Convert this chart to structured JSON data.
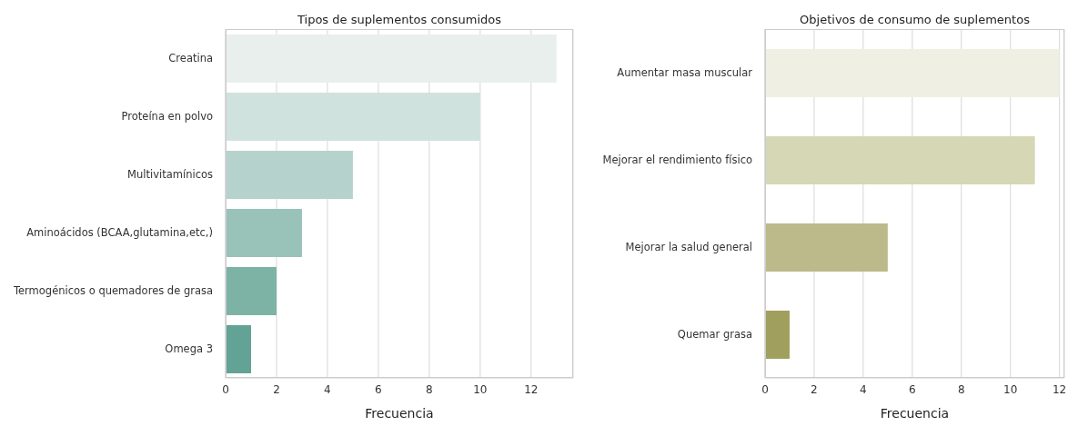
{
  "chart_data": [
    {
      "type": "bar",
      "orientation": "horizontal",
      "title": "Tipos de suplementos consumidos",
      "xlabel": "Frecuencia",
      "categories": [
        "Creatina",
        "Proteína en polvo",
        "Multivitamínicos",
        "Aminoácidos (BCAA,glutamina,etc,)",
        "Termogénicos o quemadores de grasa",
        "Omega 3"
      ],
      "values": [
        13,
        10,
        5,
        3,
        2,
        1
      ],
      "colors": [
        "#e9efed",
        "#d0e2de",
        "#b5d3cc",
        "#99c2b8",
        "#7db3a4",
        "#62a395"
      ],
      "xlim": [
        0,
        13.65
      ],
      "xticks": [
        0,
        2,
        4,
        6,
        8,
        10,
        12
      ],
      "grid": "x"
    },
    {
      "type": "bar",
      "orientation": "horizontal",
      "title": "Objetivos de consumo de suplementos",
      "xlabel": "Frecuencia",
      "categories": [
        "Aumentar masa muscular",
        "Mejorar el rendimiento físico",
        "Mejorar la salud general",
        "Quemar grasa"
      ],
      "values": [
        12,
        11,
        5,
        1
      ],
      "colors": [
        "#f0efe3",
        "#d6d7b5",
        "#bcb98b",
        "#a09f5e"
      ],
      "xlim": [
        0,
        12.2
      ],
      "xticks": [
        0,
        2,
        4,
        6,
        8,
        10,
        12
      ],
      "grid": "x"
    }
  ]
}
